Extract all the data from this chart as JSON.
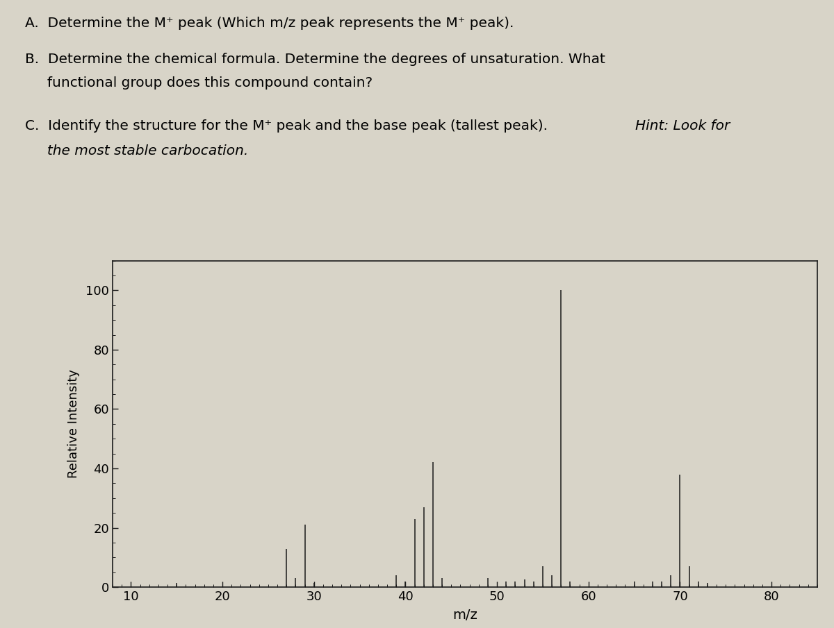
{
  "xlabel": "m/z",
  "ylabel": "Relative Intensity",
  "xlim": [
    8,
    85
  ],
  "ylim": [
    0,
    110
  ],
  "xticks": [
    10,
    20,
    30,
    40,
    50,
    60,
    70,
    80
  ],
  "yticks": [
    0,
    20,
    40,
    60,
    80,
    100
  ],
  "peaks": [
    {
      "mz": 15,
      "intensity": 1.5
    },
    {
      "mz": 27,
      "intensity": 13
    },
    {
      "mz": 28,
      "intensity": 3
    },
    {
      "mz": 29,
      "intensity": 21
    },
    {
      "mz": 30,
      "intensity": 1.5
    },
    {
      "mz": 39,
      "intensity": 4
    },
    {
      "mz": 40,
      "intensity": 2
    },
    {
      "mz": 41,
      "intensity": 23
    },
    {
      "mz": 42,
      "intensity": 27
    },
    {
      "mz": 43,
      "intensity": 42
    },
    {
      "mz": 44,
      "intensity": 3
    },
    {
      "mz": 49,
      "intensity": 3
    },
    {
      "mz": 51,
      "intensity": 2
    },
    {
      "mz": 52,
      "intensity": 2
    },
    {
      "mz": 53,
      "intensity": 2.5
    },
    {
      "mz": 54,
      "intensity": 2
    },
    {
      "mz": 55,
      "intensity": 7
    },
    {
      "mz": 56,
      "intensity": 4
    },
    {
      "mz": 57,
      "intensity": 100
    },
    {
      "mz": 58,
      "intensity": 2
    },
    {
      "mz": 65,
      "intensity": 2
    },
    {
      "mz": 67,
      "intensity": 2
    },
    {
      "mz": 68,
      "intensity": 2
    },
    {
      "mz": 69,
      "intensity": 4
    },
    {
      "mz": 70,
      "intensity": 38
    },
    {
      "mz": 71,
      "intensity": 7
    },
    {
      "mz": 72,
      "intensity": 2
    },
    {
      "mz": 73,
      "intensity": 1.5
    }
  ],
  "line_color": "#1a1a1a",
  "axis_color": "#1a1a1a",
  "background_color": "#d8d4c8",
  "plot_bg_color": "#d8d4c8",
  "text_A": "A.  Determine the M⁺ peak (Which m/z peak represents the M⁺ peak).",
  "text_B1": "B.  Determine the chemical formula. Determine the degrees of unsaturation. What",
  "text_B2": "     functional group does this compound contain?",
  "text_C1_normal": "C.  Identify the structure for the M⁺ peak and the base peak (tallest peak). ",
  "text_C1_italic": "Hint: Look for",
  "text_C2_italic": "     the most stable carbocation.",
  "fontsize": 14.5
}
